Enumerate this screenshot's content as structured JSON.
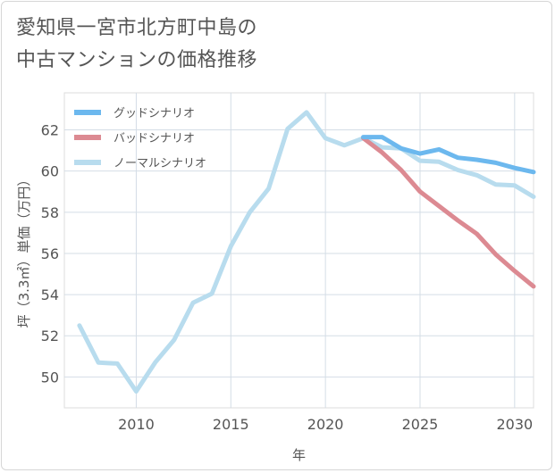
{
  "title_line1": "愛知県一宮市北方町中島の",
  "title_line2": "中古マンションの価格推移",
  "chart_data": {
    "type": "line",
    "xlabel": "年",
    "ylabel": "坪（3.3㎡）単価（万円）",
    "xlim": [
      2006.2,
      2031
    ],
    "ylim": [
      48.5,
      63.8
    ],
    "xticks": [
      2010,
      2015,
      2020,
      2025,
      2030
    ],
    "yticks": [
      50,
      52,
      54,
      56,
      58,
      60,
      62
    ],
    "grid": true,
    "legend_position": "top-left",
    "series": [
      {
        "name": "グッドシナリオ",
        "color": "#6cb8ee",
        "x": [
          2022,
          2023,
          2024,
          2025,
          2026,
          2027,
          2028,
          2029,
          2030,
          2031
        ],
        "y": [
          61.65,
          61.65,
          61.1,
          60.85,
          61.05,
          60.65,
          60.55,
          60.4,
          60.15,
          59.95
        ]
      },
      {
        "name": "バッドシナリオ",
        "color": "#dc8a92",
        "x": [
          2022,
          2023,
          2024,
          2025,
          2026,
          2027,
          2028,
          2029,
          2030,
          2031
        ],
        "y": [
          61.6,
          60.9,
          60.05,
          59.0,
          58.3,
          57.6,
          56.95,
          55.95,
          55.15,
          54.4
        ]
      },
      {
        "name": "ノーマルシナリオ",
        "color": "#b8dcee",
        "x": [
          2007,
          2008,
          2009,
          2010,
          2011,
          2012,
          2013,
          2014,
          2015,
          2016,
          2017,
          2018,
          2019,
          2020,
          2021,
          2022,
          2023,
          2024,
          2025,
          2026,
          2027,
          2028,
          2029,
          2030,
          2031
        ],
        "y": [
          52.5,
          50.7,
          50.65,
          49.3,
          50.7,
          51.8,
          53.6,
          54.05,
          56.35,
          58.0,
          59.15,
          62.05,
          62.85,
          61.6,
          61.25,
          61.6,
          61.15,
          61.1,
          60.5,
          60.45,
          60.05,
          59.8,
          59.35,
          59.3,
          58.75
        ]
      }
    ]
  }
}
